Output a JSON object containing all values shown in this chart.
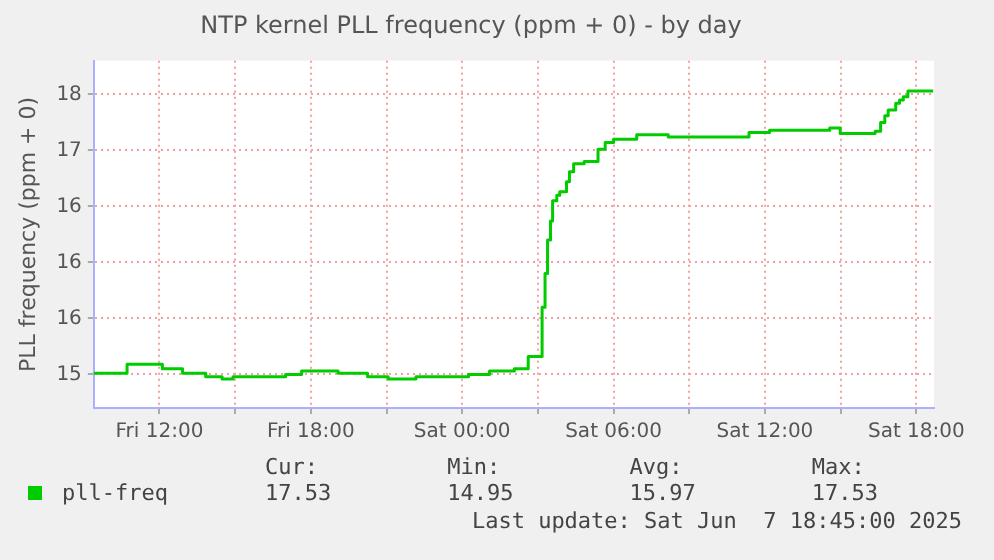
{
  "chart_data": {
    "type": "step",
    "title": "NTP kernel PLL frequency (ppm + 0) - by day",
    "ylabel": "PLL frequency (ppm + 0)",
    "x": [
      "2025-06-06T09:25",
      "2025-06-06T10:43",
      "2025-06-06T12:07",
      "2025-06-06T12:55",
      "2025-06-06T13:50",
      "2025-06-06T14:29",
      "2025-06-06T14:55",
      "2025-06-06T17:00",
      "2025-06-06T17:38",
      "2025-06-06T19:05",
      "2025-06-06T20:15",
      "2025-06-06T21:04",
      "2025-06-06T22:10",
      "2025-06-07T00:15",
      "2025-06-07T01:05",
      "2025-06-07T02:04",
      "2025-06-07T02:37",
      "2025-06-07T03:10",
      "2025-06-07T03:17",
      "2025-06-07T03:23",
      "2025-06-07T03:30",
      "2025-06-07T03:35",
      "2025-06-07T03:45",
      "2025-06-07T03:52",
      "2025-06-07T04:08",
      "2025-06-07T04:15",
      "2025-06-07T04:25",
      "2025-06-07T04:50",
      "2025-06-07T05:23",
      "2025-06-07T05:40",
      "2025-06-07T06:00",
      "2025-06-07T06:55",
      "2025-06-07T08:10",
      "2025-06-07T11:22",
      "2025-06-07T12:11",
      "2025-06-07T14:34",
      "2025-06-07T14:59",
      "2025-06-07T16:22",
      "2025-06-07T16:35",
      "2025-06-07T16:45",
      "2025-06-07T16:53",
      "2025-06-07T17:11",
      "2025-06-07T17:20",
      "2025-06-07T17:29",
      "2025-06-07T17:40",
      "2025-06-07T17:53",
      "2025-06-07T18:40"
    ],
    "series": [
      {
        "name": "pll-freq",
        "color": "#00cc00",
        "values": [
          15.0,
          15.01,
          15.09,
          15.05,
          15.01,
          14.98,
          14.96,
          14.98,
          15.0,
          15.03,
          15.01,
          14.98,
          14.96,
          14.98,
          15.0,
          15.03,
          15.05,
          15.16,
          15.6,
          15.9,
          16.2,
          16.37,
          16.55,
          16.6,
          16.63,
          16.72,
          16.81,
          16.88,
          16.9,
          17.01,
          17.07,
          17.1,
          17.14,
          17.12,
          17.16,
          17.18,
          17.2,
          17.15,
          17.17,
          17.25,
          17.31,
          17.36,
          17.42,
          17.45,
          17.48,
          17.53,
          17.53
        ]
      }
    ],
    "xlim": [
      "2025-06-06T09:24",
      "2025-06-07T18:42"
    ],
    "xticks": [
      {
        "value": "2025-06-06T12:00",
        "label": "Fri 12:00"
      },
      {
        "value": "2025-06-06T15:00",
        "label": null
      },
      {
        "value": "2025-06-06T18:00",
        "label": "Fri 18:00"
      },
      {
        "value": "2025-06-06T21:00",
        "label": null
      },
      {
        "value": "2025-06-07T00:00",
        "label": "Sat 00:00"
      },
      {
        "value": "2025-06-07T03:00",
        "label": null
      },
      {
        "value": "2025-06-07T06:00",
        "label": "Sat 06:00"
      },
      {
        "value": "2025-06-07T09:00",
        "label": null
      },
      {
        "value": "2025-06-07T12:00",
        "label": "Sat 12:00"
      },
      {
        "value": "2025-06-07T15:00",
        "label": null
      },
      {
        "value": "2025-06-07T18:00",
        "label": "Sat 18:00"
      }
    ],
    "ylim": [
      14.7,
      17.8
    ],
    "yticks": [
      15,
      {
        "value": 15.5,
        "label": "16"
      },
      16,
      {
        "value": 16.5,
        "label": "16"
      },
      17,
      {
        "value": 17.5,
        "label": "18"
      }
    ],
    "grid": true,
    "legend": "bottom",
    "annotations": [
      "Cur:",
      "17.53",
      "Min:",
      "14.95",
      "Avg:",
      "15.97",
      "Max:",
      "17.53",
      "Last update: Sat Jun  7 18:45:00 2025"
    ]
  }
}
